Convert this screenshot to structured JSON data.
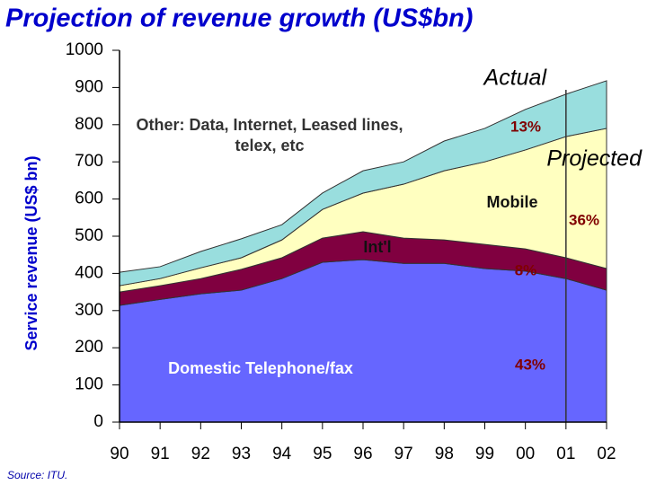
{
  "chart_data": {
    "type": "stacked_area",
    "title": "Projection of revenue growth (US$bn)",
    "y_label": "Service revenue (US$ bn)",
    "categories": [
      "90",
      "91",
      "92",
      "93",
      "94",
      "95",
      "96",
      "97",
      "98",
      "99",
      "00",
      "01",
      "02"
    ],
    "series": [
      {
        "name": "Domestic Telephone/fax",
        "color": "#6666ff",
        "values": [
          314,
          330,
          345,
          355,
          386,
          430,
          437,
          427,
          427,
          413,
          406,
          386,
          355
        ]
      },
      {
        "name": "Int'l",
        "color": "#800040",
        "values": [
          36,
          37,
          41,
          56,
          56,
          65,
          75,
          68,
          63,
          65,
          60,
          56,
          58
        ]
      },
      {
        "name": "Mobile",
        "color": "#ffffc0",
        "values": [
          17,
          19,
          29,
          31,
          48,
          77,
          104,
          145,
          186,
          222,
          266,
          326,
          377
        ]
      },
      {
        "name": "Other: Data, Internet, Leased lines, telex, etc",
        "color": "#99dede",
        "values": [
          36,
          32,
          44,
          51,
          41,
          44,
          60,
          60,
          80,
          90,
          109,
          114,
          128
        ]
      }
    ],
    "ylim": [
      0,
      1000
    ],
    "yticks": [
      0,
      100,
      200,
      300,
      400,
      500,
      600,
      700,
      800,
      900,
      1000
    ],
    "divider_category": "01",
    "annotations": [
      "Actual",
      "Projected",
      "13%",
      "36%",
      "8%",
      "43%"
    ],
    "source": "Source:  ITU."
  }
}
